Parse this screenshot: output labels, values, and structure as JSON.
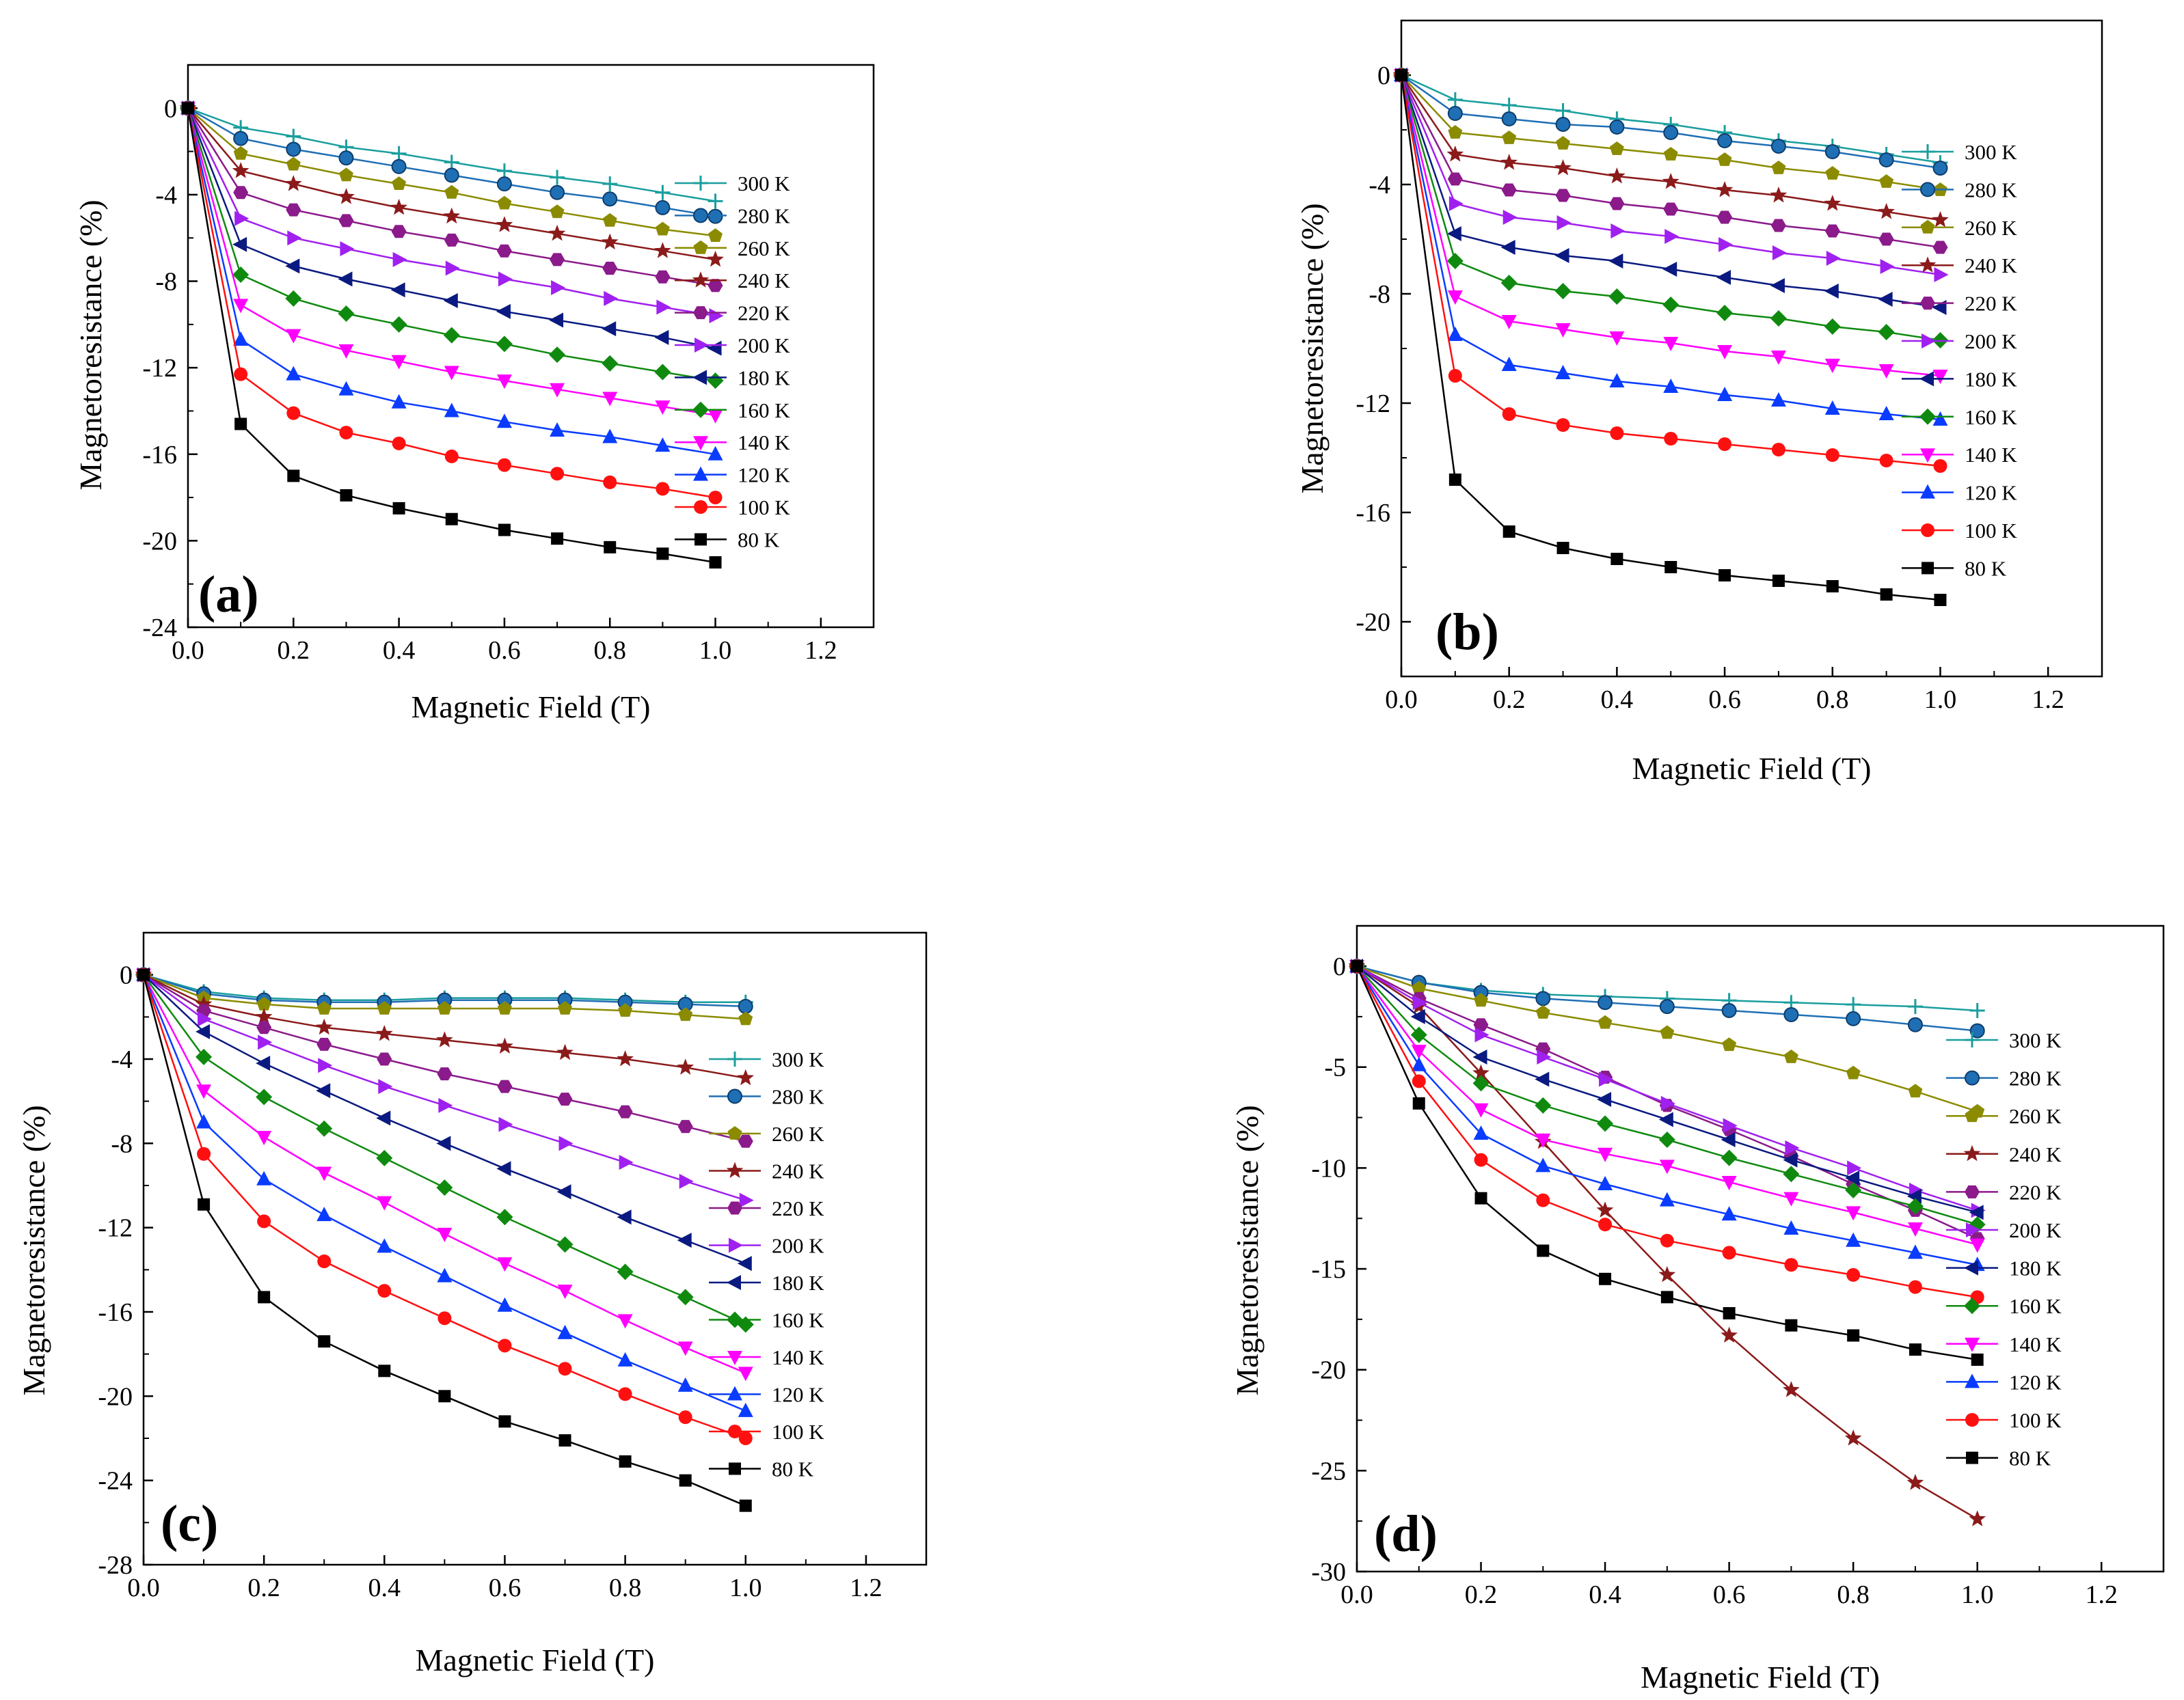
{
  "figure": {
    "description_labels": [
      "(a)",
      "(b)",
      "(c)",
      "(d)"
    ],
    "marker_styles": {
      "300 K": {
        "shape": "plus",
        "color": "#1a9e9e"
      },
      "280 K": {
        "shape": "sphere",
        "color": "#1f6fb5"
      },
      "260 K": {
        "shape": "pentagon",
        "color": "#8b8b00"
      },
      "240 K": {
        "shape": "star",
        "color": "#8b1a1a"
      },
      "220 K": {
        "shape": "hexagon",
        "color": "#8b1a8b"
      },
      "200 K": {
        "shape": "triangle-right",
        "color": "#a020f0"
      },
      "180 K": {
        "shape": "triangle-left",
        "color": "#0a1a80"
      },
      "160 K": {
        "shape": "diamond",
        "color": "#0f8a0f"
      },
      "140 K": {
        "shape": "triangle-down",
        "color": "#ff00ff"
      },
      "120 K": {
        "shape": "triangle-up",
        "color": "#0a3cff"
      },
      "100 K": {
        "shape": "circle",
        "color": "#ff1010"
      },
      "80 K": {
        "shape": "square",
        "color": "#000000"
      }
    }
  },
  "chart_data": [
    {
      "type": "line",
      "panel_label": "(a)",
      "xlabel": "Magnetic Field (T)",
      "ylabel": "Magnetoresistance (%)",
      "xlim": [
        0,
        1.3
      ],
      "ylim": [
        -24,
        2
      ],
      "xticks": [
        "0.0",
        "0.2",
        "0.4",
        "0.6",
        "0.8",
        "1.0",
        "1.2"
      ],
      "yticks": [
        "0",
        "-4",
        "-8",
        "-12",
        "-16",
        "-20",
        "-24"
      ],
      "ytick_values": [
        0,
        -4,
        -8,
        -12,
        -16,
        -20,
        -24
      ],
      "x": [
        0,
        0.1,
        0.2,
        0.3,
        0.4,
        0.5,
        0.6,
        0.7,
        0.8,
        0.9,
        1.0
      ],
      "series": [
        {
          "name": "300 K",
          "values": [
            0,
            -0.9,
            -1.3,
            -1.8,
            -2.1,
            -2.5,
            -2.9,
            -3.2,
            -3.5,
            -3.9,
            -4.3
          ]
        },
        {
          "name": "280 K",
          "values": [
            0,
            -1.4,
            -1.9,
            -2.3,
            -2.7,
            -3.1,
            -3.5,
            -3.9,
            -4.2,
            -4.6,
            -5.0
          ]
        },
        {
          "name": "260 K",
          "values": [
            0,
            -2.1,
            -2.6,
            -3.1,
            -3.5,
            -3.9,
            -4.4,
            -4.8,
            -5.2,
            -5.6,
            -5.9
          ]
        },
        {
          "name": "240 K",
          "values": [
            0,
            -2.9,
            -3.5,
            -4.1,
            -4.6,
            -5.0,
            -5.4,
            -5.8,
            -6.2,
            -6.6,
            -7.0
          ]
        },
        {
          "name": "220 K",
          "values": [
            0,
            -3.9,
            -4.7,
            -5.2,
            -5.7,
            -6.1,
            -6.6,
            -7.0,
            -7.4,
            -7.8,
            -8.2
          ]
        },
        {
          "name": "200 K",
          "values": [
            0,
            -5.1,
            -6.0,
            -6.5,
            -7.0,
            -7.4,
            -7.9,
            -8.3,
            -8.8,
            -9.2,
            -9.6
          ]
        },
        {
          "name": "180 K",
          "values": [
            0,
            -6.3,
            -7.3,
            -7.9,
            -8.4,
            -8.9,
            -9.4,
            -9.8,
            -10.2,
            -10.6,
            -11.1
          ]
        },
        {
          "name": "160 K",
          "values": [
            0,
            -7.7,
            -8.8,
            -9.5,
            -10.0,
            -10.5,
            -10.9,
            -11.4,
            -11.8,
            -12.2,
            -12.6
          ]
        },
        {
          "name": "140 K",
          "values": [
            0,
            -9.1,
            -10.5,
            -11.2,
            -11.7,
            -12.2,
            -12.6,
            -13.0,
            -13.4,
            -13.8,
            -14.2
          ]
        },
        {
          "name": "120 K",
          "values": [
            0,
            -10.7,
            -12.3,
            -13.0,
            -13.6,
            -14.0,
            -14.5,
            -14.9,
            -15.2,
            -15.6,
            -16.0
          ]
        },
        {
          "name": "100 K",
          "values": [
            0,
            -12.3,
            -14.1,
            -15.0,
            -15.5,
            -16.1,
            -16.5,
            -16.9,
            -17.3,
            -17.6,
            -18.0
          ]
        },
        {
          "name": "80 K",
          "values": [
            0,
            -14.6,
            -17.0,
            -17.9,
            -18.5,
            -19.0,
            -19.5,
            -19.9,
            -20.3,
            -20.6,
            -21.0
          ]
        }
      ]
    },
    {
      "type": "line",
      "panel_label": "(b)",
      "xlabel": "Magnetic Field (T)",
      "ylabel": "Magnetoresistance (%)",
      "xlim": [
        0,
        1.3
      ],
      "ylim": [
        -22,
        2
      ],
      "xticks": [
        "0.0",
        "0.2",
        "0.4",
        "0.6",
        "0.8",
        "1.0",
        "1.2"
      ],
      "yticks": [
        "0",
        "-4",
        "-8",
        "-12",
        "-16",
        "-20"
      ],
      "ytick_values": [
        0,
        -4,
        -8,
        -12,
        -16,
        -20
      ],
      "x": [
        0,
        0.1,
        0.2,
        0.3,
        0.4,
        0.5,
        0.6,
        0.7,
        0.8,
        0.9,
        1.0
      ],
      "series": [
        {
          "name": "300 K",
          "values": [
            0,
            -0.9,
            -1.1,
            -1.3,
            -1.6,
            -1.8,
            -2.1,
            -2.4,
            -2.6,
            -2.9,
            -3.2
          ]
        },
        {
          "name": "280 K",
          "values": [
            0,
            -1.4,
            -1.6,
            -1.8,
            -1.9,
            -2.1,
            -2.4,
            -2.6,
            -2.8,
            -3.1,
            -3.4
          ]
        },
        {
          "name": "260 K",
          "values": [
            0,
            -2.1,
            -2.3,
            -2.5,
            -2.7,
            -2.9,
            -3.1,
            -3.4,
            -3.6,
            -3.9,
            -4.2
          ]
        },
        {
          "name": "240 K",
          "values": [
            0,
            -2.9,
            -3.2,
            -3.4,
            -3.7,
            -3.9,
            -4.2,
            -4.4,
            -4.7,
            -5.0,
            -5.3
          ]
        },
        {
          "name": "220 K",
          "values": [
            0,
            -3.8,
            -4.2,
            -4.4,
            -4.7,
            -4.9,
            -5.2,
            -5.5,
            -5.7,
            -6.0,
            -6.3
          ]
        },
        {
          "name": "200 K",
          "values": [
            0,
            -4.7,
            -5.2,
            -5.4,
            -5.7,
            -5.9,
            -6.2,
            -6.5,
            -6.7,
            -7.0,
            -7.3
          ]
        },
        {
          "name": "180 K",
          "values": [
            0,
            -5.8,
            -6.3,
            -6.6,
            -6.8,
            -7.1,
            -7.4,
            -7.7,
            -7.9,
            -8.2,
            -8.5
          ]
        },
        {
          "name": "160 K",
          "values": [
            0,
            -6.8,
            -7.6,
            -7.9,
            -8.1,
            -8.4,
            -8.7,
            -8.9,
            -9.2,
            -9.4,
            -9.7
          ]
        },
        {
          "name": "140 K",
          "values": [
            0,
            -8.1,
            -9.0,
            -9.3,
            -9.6,
            -9.8,
            -10.1,
            -10.3,
            -10.6,
            -10.8,
            -11.0
          ]
        },
        {
          "name": "120 K",
          "values": [
            0,
            -9.5,
            -10.6,
            -10.9,
            -11.2,
            -11.4,
            -11.7,
            -11.9,
            -12.2,
            -12.4,
            -12.6
          ]
        },
        {
          "name": "100 K",
          "values": [
            0,
            -11.0,
            -12.4,
            -12.8,
            -13.1,
            -13.3,
            -13.5,
            -13.7,
            -13.9,
            -14.1,
            -14.3
          ]
        },
        {
          "name": "80 K",
          "values": [
            0,
            -14.8,
            -16.7,
            -17.3,
            -17.7,
            -18.0,
            -18.3,
            -18.5,
            -18.7,
            -19.0,
            -19.2
          ]
        }
      ]
    },
    {
      "type": "line",
      "panel_label": "(c)",
      "xlabel": "Magnetic Field (T)",
      "ylabel": "Magnetoresistance (%)",
      "xlim": [
        0,
        1.3
      ],
      "ylim": [
        -28,
        2
      ],
      "xticks": [
        "0.0",
        "0.2",
        "0.4",
        "0.6",
        "0.8",
        "1.0",
        "1.2"
      ],
      "yticks": [
        "0",
        "-4",
        "-8",
        "-12",
        "-16",
        "-20",
        "-24",
        "-28"
      ],
      "ytick_values": [
        0,
        -4,
        -8,
        -12,
        -16,
        -20,
        -24,
        -28
      ],
      "x": [
        0,
        0.1,
        0.2,
        0.3,
        0.4,
        0.5,
        0.6,
        0.7,
        0.8,
        0.9,
        1.0
      ],
      "series": [
        {
          "name": "300 K",
          "values": [
            0,
            -0.8,
            -1.1,
            -1.2,
            -1.2,
            -1.1,
            -1.1,
            -1.1,
            -1.2,
            -1.3,
            -1.3
          ]
        },
        {
          "name": "280 K",
          "values": [
            0,
            -0.9,
            -1.2,
            -1.3,
            -1.3,
            -1.2,
            -1.2,
            -1.2,
            -1.3,
            -1.4,
            -1.5
          ]
        },
        {
          "name": "260 K",
          "values": [
            0,
            -1.1,
            -1.4,
            -1.6,
            -1.6,
            -1.6,
            -1.6,
            -1.6,
            -1.7,
            -1.9,
            -2.1
          ]
        },
        {
          "name": "240 K",
          "values": [
            0,
            -1.4,
            -2.0,
            -2.5,
            -2.8,
            -3.1,
            -3.4,
            -3.7,
            -4.0,
            -4.4,
            -4.9
          ]
        },
        {
          "name": "220 K",
          "values": [
            0,
            -1.7,
            -2.5,
            -3.3,
            -4.0,
            -4.7,
            -5.3,
            -5.9,
            -6.5,
            -7.2,
            -7.9
          ]
        },
        {
          "name": "200 K",
          "values": [
            0,
            -2.1,
            -3.2,
            -4.3,
            -5.3,
            -6.2,
            -7.1,
            -8.0,
            -8.9,
            -9.8,
            -10.7
          ]
        },
        {
          "name": "180 K",
          "values": [
            0,
            -2.7,
            -4.2,
            -5.5,
            -6.8,
            -8.0,
            -9.2,
            -10.3,
            -11.5,
            -12.6,
            -13.7
          ]
        },
        {
          "name": "160 K",
          "values": [
            0,
            -3.9,
            -5.8,
            -7.3,
            -8.7,
            -10.1,
            -11.5,
            -12.8,
            -14.1,
            -15.3,
            -16.6
          ]
        },
        {
          "name": "140 K",
          "values": [
            0,
            -5.5,
            -7.7,
            -9.4,
            -10.8,
            -12.3,
            -13.7,
            -15.0,
            -16.4,
            -17.7,
            -18.9
          ]
        },
        {
          "name": "120 K",
          "values": [
            0,
            -7.0,
            -9.7,
            -11.4,
            -12.9,
            -14.3,
            -15.7,
            -17.0,
            -18.3,
            -19.5,
            -20.7
          ]
        },
        {
          "name": "100 K",
          "values": [
            0,
            -8.5,
            -11.7,
            -13.6,
            -15.0,
            -16.3,
            -17.6,
            -18.7,
            -19.9,
            -21.0,
            -22.0
          ]
        },
        {
          "name": "80 K",
          "values": [
            0,
            -10.9,
            -15.3,
            -17.4,
            -18.8,
            -20.0,
            -21.2,
            -22.1,
            -23.1,
            -24.0,
            -25.2
          ]
        }
      ]
    },
    {
      "type": "line",
      "panel_label": "(d)",
      "xlabel": "Magnetic Field (T)",
      "ylabel": "Magnetoresistance (%)",
      "xlim": [
        0,
        1.3
      ],
      "ylim": [
        -30,
        2
      ],
      "xticks": [
        "0.0",
        "0.2",
        "0.4",
        "0.6",
        "0.8",
        "1.0",
        "1.2"
      ],
      "yticks": [
        "0",
        "-5",
        "-10",
        "-15",
        "-20",
        "-25",
        "-30"
      ],
      "ytick_values": [
        0,
        -5,
        -10,
        -15,
        -20,
        -25,
        -30
      ],
      "x": [
        0,
        0.1,
        0.2,
        0.3,
        0.4,
        0.5,
        0.6,
        0.7,
        0.8,
        0.9,
        1.0
      ],
      "series": [
        {
          "name": "300 K",
          "values": [
            0,
            -0.8,
            -1.2,
            -1.4,
            -1.5,
            -1.6,
            -1.7,
            -1.8,
            -1.9,
            -2.0,
            -2.2
          ]
        },
        {
          "name": "280 K",
          "values": [
            0,
            -0.8,
            -1.3,
            -1.6,
            -1.8,
            -2.0,
            -2.2,
            -2.4,
            -2.6,
            -2.9,
            -3.2
          ]
        },
        {
          "name": "260 K",
          "values": [
            0,
            -1.1,
            -1.7,
            -2.3,
            -2.8,
            -3.3,
            -3.9,
            -4.5,
            -5.3,
            -6.2,
            -7.2
          ]
        },
        {
          "name": "240 K",
          "values": [
            0,
            -2.0,
            -5.3,
            -8.7,
            -12.1,
            -15.3,
            -18.3,
            -21.0,
            -23.4,
            -25.6,
            -27.4
          ]
        },
        {
          "name": "220 K",
          "values": [
            0,
            -1.6,
            -2.9,
            -4.1,
            -5.5,
            -6.9,
            -8.1,
            -9.4,
            -10.8,
            -12.1,
            -13.5
          ]
        },
        {
          "name": "200 K",
          "values": [
            0,
            -1.8,
            -3.4,
            -4.5,
            -5.6,
            -6.8,
            -7.9,
            -9.0,
            -10.0,
            -11.1,
            -12.1
          ]
        },
        {
          "name": "180 K",
          "values": [
            0,
            -2.5,
            -4.5,
            -5.6,
            -6.6,
            -7.6,
            -8.6,
            -9.6,
            -10.5,
            -11.4,
            -12.2
          ]
        },
        {
          "name": "160 K",
          "values": [
            0,
            -3.4,
            -5.8,
            -6.9,
            -7.8,
            -8.6,
            -9.5,
            -10.3,
            -11.1,
            -11.9,
            -12.8
          ]
        },
        {
          "name": "140 K",
          "values": [
            0,
            -4.2,
            -7.1,
            -8.6,
            -9.3,
            -9.9,
            -10.7,
            -11.5,
            -12.2,
            -13.0,
            -13.8
          ]
        },
        {
          "name": "120 K",
          "values": [
            0,
            -4.9,
            -8.3,
            -9.9,
            -10.8,
            -11.6,
            -12.3,
            -13.0,
            -13.6,
            -14.2,
            -14.8
          ]
        },
        {
          "name": "100 K",
          "values": [
            0,
            -5.7,
            -9.6,
            -11.6,
            -12.8,
            -13.6,
            -14.2,
            -14.8,
            -15.3,
            -15.9,
            -16.4
          ]
        },
        {
          "name": "80 K",
          "values": [
            0,
            -6.8,
            -11.5,
            -14.1,
            -15.5,
            -16.4,
            -17.2,
            -17.8,
            -18.3,
            -19.0,
            -19.5
          ]
        }
      ]
    }
  ]
}
